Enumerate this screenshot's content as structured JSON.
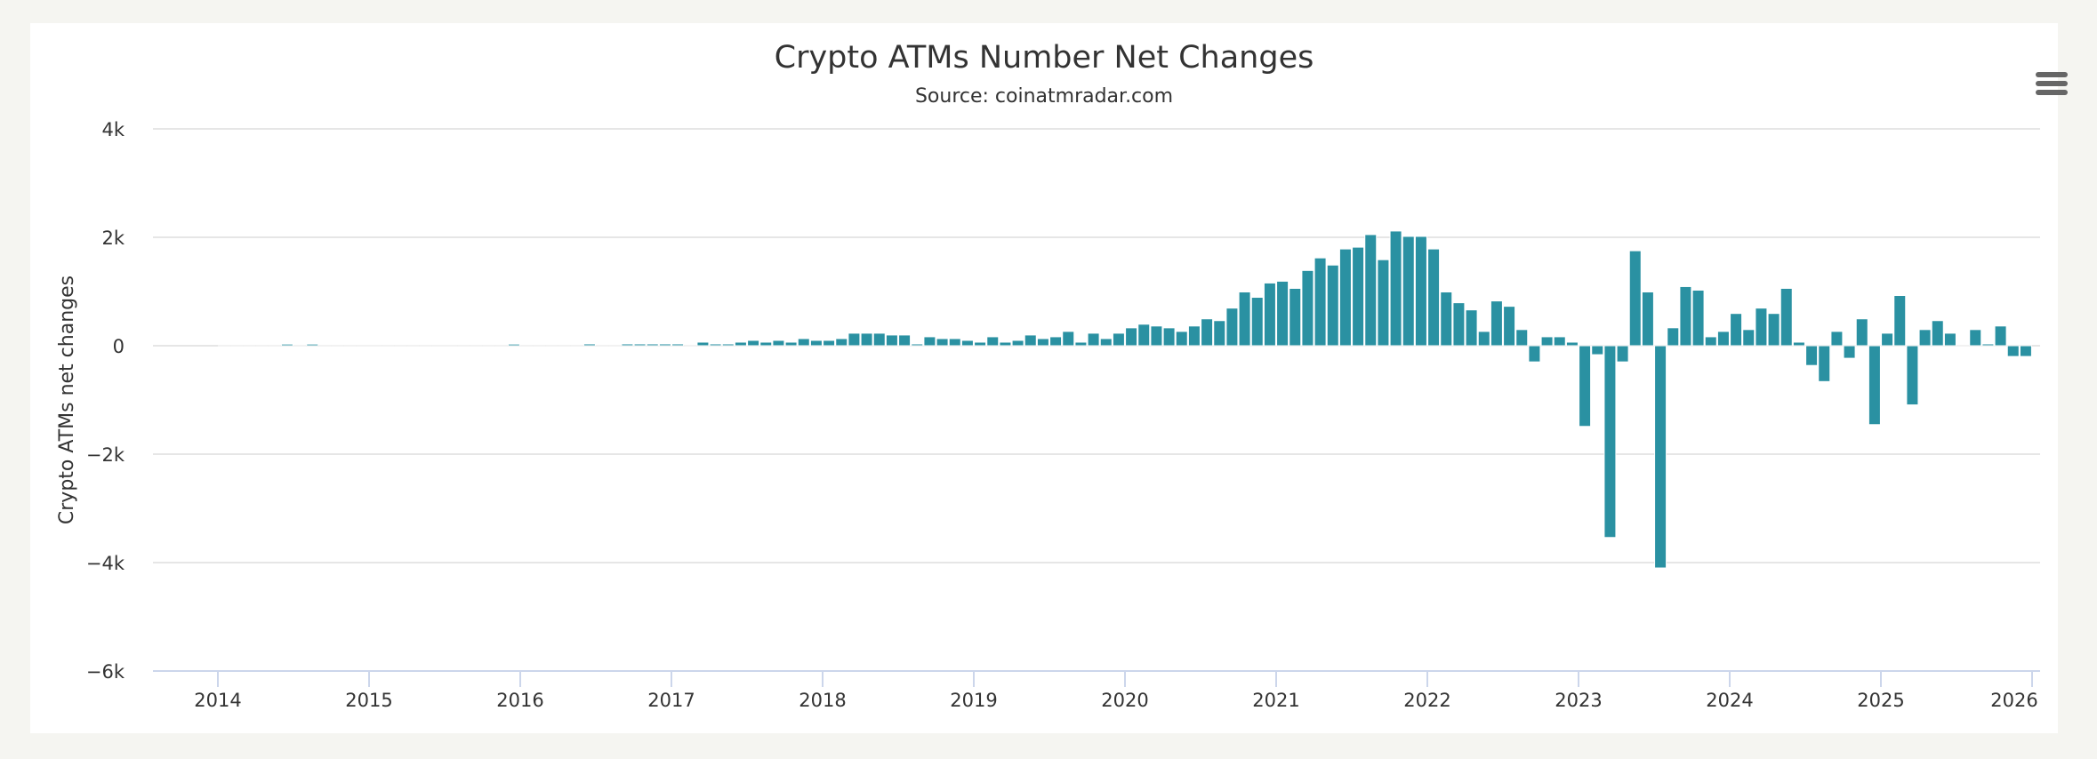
{
  "chart_data": {
    "type": "bar",
    "title": "Crypto ATMs Number Net Changes",
    "subtitle": "Source: coinatmradar.com",
    "ylabel": "Crypto ATMs net changes",
    "xlabel": "",
    "ylim": [
      -6000,
      4000
    ],
    "yticks": [
      -6000,
      -4000,
      -2000,
      0,
      2000,
      4000
    ],
    "ytick_labels": [
      "−6k",
      "−4k",
      "−2k",
      "0",
      "2k",
      "4k"
    ],
    "xticks": [
      "2014",
      "2015",
      "2016",
      "2017",
      "2018",
      "2019",
      "2020",
      "2021",
      "2022",
      "2023",
      "2024",
      "2025",
      "2026"
    ],
    "xlim": [
      "2014-01",
      "2026-01"
    ],
    "grid": true,
    "legend": "none",
    "bar_color": "#2a91a2",
    "start_month": "2014-01",
    "interval": "monthly",
    "values": [
      0,
      0,
      0,
      0,
      0,
      30,
      0,
      30,
      0,
      0,
      0,
      0,
      0,
      0,
      0,
      0,
      0,
      0,
      0,
      0,
      0,
      0,
      0,
      30,
      0,
      0,
      0,
      0,
      0,
      33,
      0,
      0,
      33,
      33,
      33,
      33,
      33,
      0,
      66,
      33,
      33,
      66,
      99,
      66,
      99,
      66,
      132,
      99,
      99,
      132,
      231,
      231,
      231,
      198,
      198,
      33,
      165,
      132,
      132,
      99,
      66,
      165,
      66,
      99,
      198,
      132,
      165,
      264,
      66,
      231,
      132,
      231,
      330,
      397,
      364,
      330,
      264,
      364,
      496,
      463,
      694,
      992,
      893,
      1157,
      1190,
      1058,
      1388,
      1620,
      1488,
      1785,
      1818,
      2050,
      1587,
      2116,
      2017,
      2017,
      1785,
      992,
      793,
      661,
      264,
      826,
      727,
      298,
      -298,
      165,
      165,
      66,
      -1488,
      -165,
      -3537,
      -298,
      1752,
      992,
      -4099,
      331,
      1091,
      1025,
      165,
      264,
      595,
      298,
      694,
      595,
      1058,
      66,
      -364,
      -661,
      264,
      -231,
      496,
      -1455,
      231,
      926,
      -1091,
      298,
      463,
      231,
      0,
      298,
      33,
      364,
      -198,
      -198
    ]
  },
  "menu": {
    "icon": "hamburger-menu-icon"
  }
}
